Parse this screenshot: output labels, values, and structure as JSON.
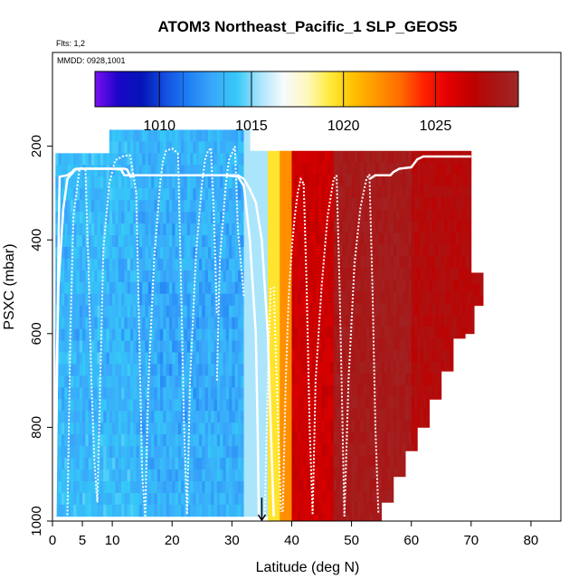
{
  "chart_data": {
    "type": "heatmap",
    "title": "ATOM3 Northeast_Pacific_1 SLP_GEOS5",
    "note_flights": "Flts: 1,2",
    "note_dates": "MMDD: 0928,1001",
    "xlabel": "Latitude (deg N)",
    "ylabel": "PSXC (mbar)",
    "xlim": [
      0,
      85
    ],
    "ylim": [
      1000,
      0
    ],
    "xticks": [
      0,
      5,
      10,
      20,
      30,
      40,
      50,
      60,
      70,
      80
    ],
    "yticks": [
      200,
      400,
      600,
      800,
      1000
    ],
    "colorbar": {
      "vmin": 1006.5,
      "vmax": 1029.5,
      "ticks": [
        1010,
        1015,
        1020,
        1025
      ],
      "colors": [
        "#7a0ff2",
        "#1a05c8",
        "#0515b8",
        "#1450e0",
        "#2080f5",
        "#3aa8fa",
        "#35c8f8",
        "#a8e4fb",
        "#f7fbfd",
        "#fff8c0",
        "#ffeb3a",
        "#ffc000",
        "#ff9500",
        "#ff6a00",
        "#ff2000",
        "#e30000",
        "#c00000",
        "#a81515",
        "#a02828"
      ]
    },
    "field_zones": [
      {
        "lat_end": 14,
        "slp": 1013.8
      },
      {
        "lat_end": 32,
        "slp": 1013.4
      },
      {
        "lat_end": 36,
        "slp": 1015.5
      },
      {
        "lat_end": 38,
        "slp": 1019.5
      },
      {
        "lat_end": 40,
        "slp": 1022.0
      },
      {
        "lat_end": 47,
        "slp": 1026.5
      },
      {
        "lat_end": 60,
        "slp": 1028.6
      },
      {
        "lat_end": 72,
        "slp": 1027.6
      }
    ],
    "field_top": [
      {
        "lat_start": 0.5,
        "lat_end": 9.5,
        "p": 215
      },
      {
        "lat_start": 9.5,
        "lat_end": 33,
        "p": 165
      },
      {
        "lat_start": 33,
        "lat_end": 70,
        "p": 210
      },
      {
        "lat_start": 70,
        "lat_end": 72,
        "p": 470
      }
    ],
    "field_bottom": [
      {
        "lat_start": 0,
        "lat_end": 36,
        "p": 990
      },
      {
        "lat_start": 36,
        "lat_end": 55,
        "p": 1000
      },
      {
        "lat_start": 55,
        "lat_end": 57,
        "p": 960
      },
      {
        "lat_start": 57,
        "lat_end": 59,
        "p": 905
      },
      {
        "lat_start": 59,
        "lat_end": 61,
        "p": 850
      },
      {
        "lat_start": 61,
        "lat_end": 63,
        "p": 800
      },
      {
        "lat_start": 63,
        "lat_end": 65,
        "p": 740
      },
      {
        "lat_start": 65,
        "lat_end": 67,
        "p": 680
      },
      {
        "lat_start": 67,
        "lat_end": 69,
        "p": 610
      },
      {
        "lat_start": 69,
        "lat_end": 70.5,
        "p": 600
      },
      {
        "lat_start": 70.5,
        "lat_end": 72,
        "p": 540
      }
    ],
    "flight_track_1": [
      [
        0.5,
        990
      ],
      [
        1,
        420
      ],
      [
        1.2,
        265
      ],
      [
        2.5,
        262
      ],
      [
        3.3,
        255
      ],
      [
        3.6,
        250
      ],
      [
        4,
        248
      ],
      [
        5,
        248
      ],
      [
        10,
        248
      ],
      [
        11.5,
        250
      ],
      [
        12,
        262
      ],
      [
        17,
        262
      ],
      [
        19,
        262
      ],
      [
        24,
        262
      ],
      [
        29,
        262
      ],
      [
        31,
        265
      ],
      [
        32,
        285
      ],
      [
        33,
        400
      ],
      [
        34,
        600
      ],
      [
        34.3,
        800
      ],
      [
        34.5,
        990
      ]
    ],
    "flight_track_2": [
      [
        0.2,
        990
      ],
      [
        1,
        500
      ],
      [
        1.8,
        335
      ],
      [
        2.5,
        270
      ],
      [
        3,
        262
      ],
      [
        3.5,
        255
      ],
      [
        3.8,
        250
      ],
      [
        4.5,
        248
      ],
      [
        8,
        248
      ],
      [
        12,
        248
      ],
      [
        12.5,
        250
      ],
      [
        13,
        265
      ],
      [
        14,
        262
      ],
      [
        19,
        262
      ],
      [
        25,
        262
      ],
      [
        31,
        262
      ],
      [
        32,
        270
      ],
      [
        33,
        292
      ],
      [
        34,
        320
      ],
      [
        35,
        400
      ],
      [
        36,
        600
      ],
      [
        36.5,
        800
      ],
      [
        37,
        990
      ]
    ],
    "profiles": [
      [
        [
          2.5,
          995
        ],
        [
          3,
          600
        ],
        [
          3.5,
          350
        ],
        [
          4.5,
          250
        ],
        [
          5,
          245
        ]
      ],
      [
        [
          5.5,
          250
        ],
        [
          6,
          450
        ],
        [
          6.5,
          700
        ],
        [
          7,
          870
        ],
        [
          7.5,
          960
        ]
      ],
      [
        [
          7.5,
          960
        ],
        [
          8,
          700
        ],
        [
          8.5,
          420
        ],
        [
          9.5,
          280
        ],
        [
          10.5,
          230
        ],
        [
          12,
          220
        ],
        [
          13,
          220
        ],
        [
          14,
          300
        ]
      ],
      [
        [
          14,
          300
        ],
        [
          14.5,
          600
        ],
        [
          15,
          900
        ],
        [
          15.5,
          990
        ]
      ],
      [
        [
          15.5,
          990
        ],
        [
          16,
          720
        ],
        [
          17,
          440
        ],
        [
          18,
          280
        ],
        [
          18.5,
          230
        ],
        [
          19,
          210
        ],
        [
          20,
          205
        ],
        [
          21,
          215
        ]
      ],
      [
        [
          21,
          215
        ],
        [
          21.5,
          500
        ],
        [
          22,
          800
        ],
        [
          22.5,
          985
        ]
      ],
      [
        [
          22.5,
          985
        ],
        [
          23,
          700
        ],
        [
          24,
          430
        ],
        [
          25,
          280
        ],
        [
          25.5,
          230
        ],
        [
          26,
          210
        ],
        [
          26.5,
          205
        ]
      ],
      [
        [
          26.5,
          205
        ],
        [
          27,
          350
        ],
        [
          27.5,
          560
        ]
      ],
      [
        [
          27.5,
          700
        ],
        [
          28,
          440
        ],
        [
          29,
          280
        ],
        [
          29.5,
          230
        ],
        [
          30,
          215
        ],
        [
          30.5,
          200
        ]
      ],
      [
        [
          30.5,
          200
        ],
        [
          31,
          380
        ],
        [
          32,
          520
        ]
      ],
      [
        [
          35.5,
          985
        ],
        [
          36,
          700
        ],
        [
          36.5,
          500
        ]
      ],
      [
        [
          37,
          500
        ],
        [
          37.5,
          700
        ],
        [
          38.2,
          980
        ]
      ],
      [
        [
          38.5,
          980
        ],
        [
          39,
          700
        ],
        [
          39.5,
          520
        ],
        [
          40,
          420
        ],
        [
          40.5,
          350
        ],
        [
          41,
          300
        ],
        [
          41.5,
          270
        ],
        [
          42,
          280
        ]
      ],
      [
        [
          42,
          280
        ],
        [
          42.5,
          500
        ],
        [
          43,
          800
        ],
        [
          43.5,
          985
        ]
      ],
      [
        [
          43.5,
          985
        ],
        [
          44,
          700
        ],
        [
          45,
          500
        ],
        [
          46,
          350
        ],
        [
          47,
          270
        ],
        [
          47.5,
          262
        ]
      ],
      [
        [
          47.5,
          262
        ],
        [
          48,
          500
        ],
        [
          48.5,
          800
        ],
        [
          48.8,
          990
        ]
      ],
      [
        [
          48.8,
          990
        ],
        [
          49.5,
          700
        ],
        [
          50.5,
          450
        ],
        [
          51.5,
          330
        ],
        [
          52.5,
          270
        ],
        [
          53,
          260
        ]
      ],
      [
        [
          53,
          260
        ],
        [
          53.5,
          500
        ],
        [
          54,
          800
        ],
        [
          54.5,
          985
        ]
      ]
    ],
    "right_track": [
      [
        53,
        270
      ],
      [
        54,
        262
      ],
      [
        55,
        262
      ],
      [
        56.5,
        262
      ],
      [
        57,
        255
      ],
      [
        58,
        248
      ],
      [
        60,
        245
      ],
      [
        61,
        228
      ],
      [
        62,
        222
      ],
      [
        64,
        222
      ],
      [
        66,
        222
      ],
      [
        70,
        222
      ]
    ],
    "arrow_lat": 35,
    "arrow_from_p": 950,
    "arrow_to_p": 1000
  }
}
